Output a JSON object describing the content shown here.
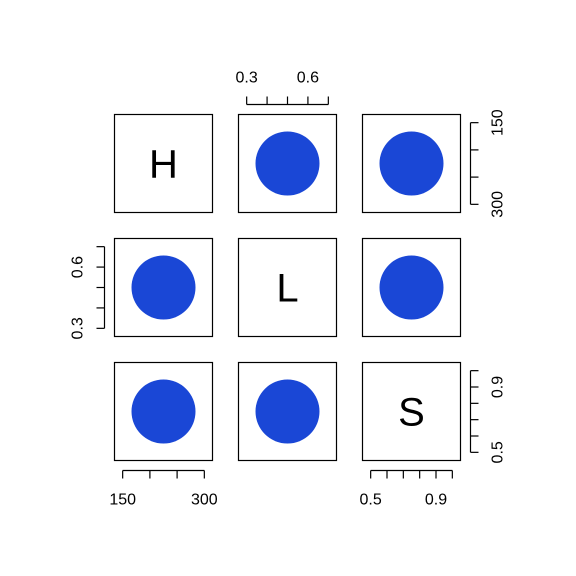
{
  "chart_data": {
    "type": "scatter",
    "subtype": "pairs-matrix",
    "variables": [
      "H",
      "L",
      "S"
    ],
    "point": {
      "H": 225,
      "L": 0.5,
      "S": 0.75
    },
    "point_color": "#1a47d6",
    "axes": {
      "H": {
        "range": [
          135,
          315
        ],
        "ticks": [
          150,
          200,
          250,
          300
        ],
        "labels": [
          "150",
          "300"
        ]
      },
      "L": {
        "range": [
          0.26,
          0.74
        ],
        "ticks": [
          0.3,
          0.4,
          0.5,
          0.6,
          0.7
        ],
        "labels": [
          "0.3",
          "0.6"
        ]
      },
      "S": {
        "range": [
          0.45,
          1.05
        ],
        "ticks": [
          0.5,
          0.6,
          0.7,
          0.8,
          0.9,
          1.0
        ],
        "labels": [
          "0.5",
          "0.9"
        ]
      }
    },
    "title": "",
    "xlabel": "",
    "ylabel": "",
    "grid": false,
    "legend": "none"
  }
}
